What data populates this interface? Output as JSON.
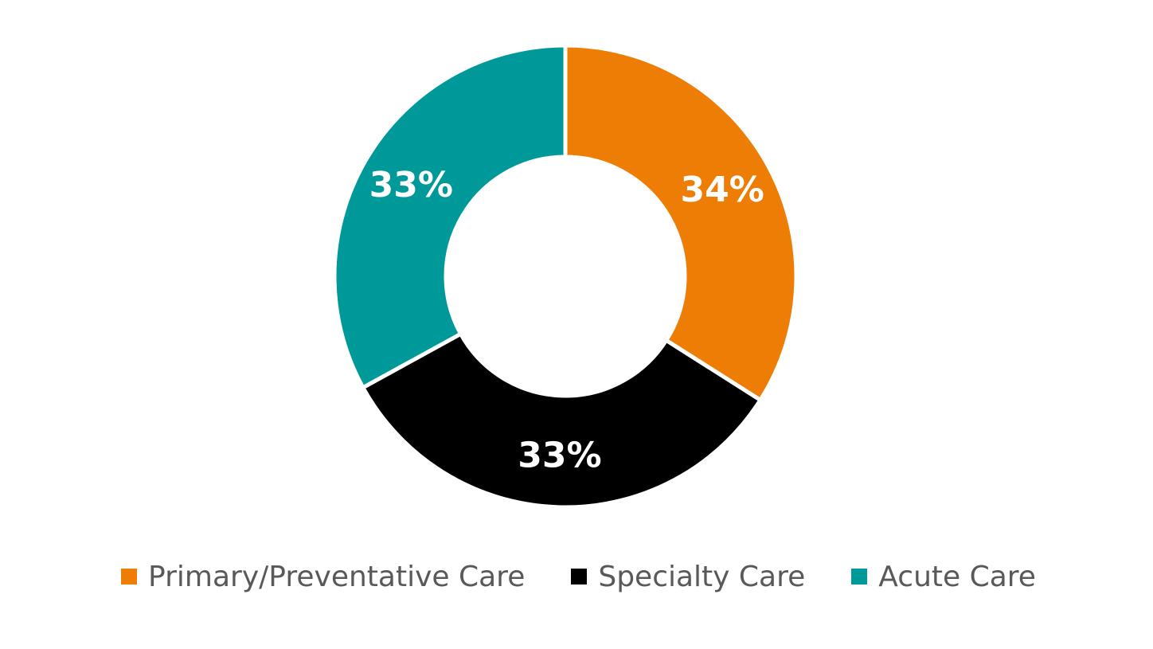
{
  "chart_data": {
    "type": "pie",
    "variant": "donut",
    "categories": [
      "Primary/Preventative Care",
      "Specialty Care",
      "Acute Care"
    ],
    "values": [
      34,
      33,
      33
    ],
    "data_labels": [
      "34%",
      "33%",
      "33%"
    ],
    "colors": [
      "#ED7D04",
      "#000000",
      "#00999A"
    ],
    "legend_position": "bottom"
  }
}
